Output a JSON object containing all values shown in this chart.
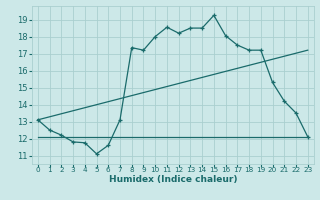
{
  "xlabel": "Humidex (Indice chaleur)",
  "bg_color": "#cce8e8",
  "grid_color": "#aacfcf",
  "line_color": "#1a6b6b",
  "xlim": [
    -0.5,
    23.5
  ],
  "ylim": [
    10.5,
    19.8
  ],
  "yticks": [
    11,
    12,
    13,
    14,
    15,
    16,
    17,
    18,
    19
  ],
  "xticks": [
    0,
    1,
    2,
    3,
    4,
    5,
    6,
    7,
    8,
    9,
    10,
    11,
    12,
    13,
    14,
    15,
    16,
    17,
    18,
    19,
    20,
    21,
    22,
    23
  ],
  "line1_x": [
    0,
    1,
    2,
    3,
    4,
    5,
    6,
    7,
    8,
    9,
    10,
    11,
    12,
    13,
    14,
    15,
    16,
    17,
    18,
    19,
    20,
    21,
    22,
    23
  ],
  "line1_y": [
    13.1,
    12.5,
    12.2,
    11.8,
    11.75,
    11.1,
    11.6,
    13.1,
    17.35,
    17.2,
    18.0,
    18.55,
    18.2,
    18.5,
    18.5,
    19.25,
    18.05,
    17.5,
    17.2,
    17.2,
    15.3,
    14.2,
    13.5,
    12.1
  ],
  "line2_x": [
    0,
    23
  ],
  "line2_y": [
    12.1,
    12.1
  ],
  "line3_x": [
    0,
    23
  ],
  "line3_y": [
    13.1,
    17.2
  ]
}
